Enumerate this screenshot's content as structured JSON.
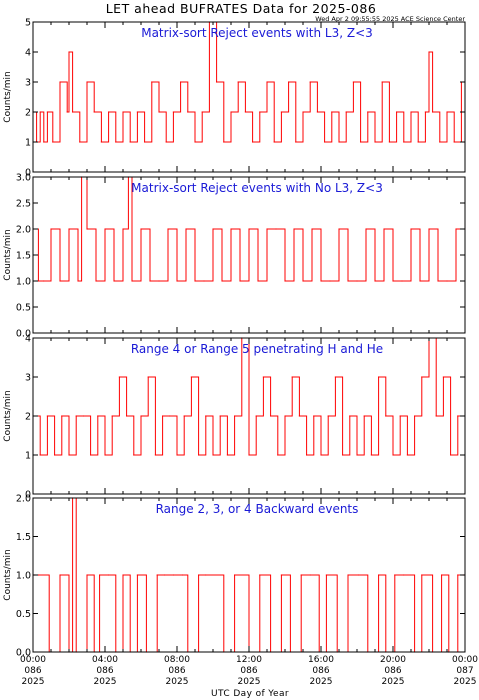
{
  "title": "LET ahead BUFRATES Data for 2025-086",
  "timestamp": "Wed Apr  2 09:55:55 2025 ACE Science Center",
  "xlabel": "UTC Day of Year",
  "x_tick_labels": [
    [
      "00:00",
      "086",
      "2025"
    ],
    [
      "04:00",
      "086",
      "2025"
    ],
    [
      "08:00",
      "086",
      "2025"
    ],
    [
      "12:00",
      "086",
      "2025"
    ],
    [
      "16:00",
      "086",
      "2025"
    ],
    [
      "20:00",
      "086",
      "2025"
    ],
    [
      "00:00",
      "087",
      "2025"
    ]
  ],
  "colors": {
    "trace": "#ff0000",
    "title": "#1a1ad6",
    "axes": "#000000"
  },
  "chart_data": [
    {
      "type": "line",
      "title": "Matrix-sort Reject events with L3, Z<3",
      "ylabel": "Counts/min",
      "ylim": [
        0,
        5
      ],
      "y_ticks": [
        "0",
        "1",
        "2",
        "3",
        "4",
        "5"
      ],
      "xlim_hours": [
        0,
        24
      ],
      "x_hours": [
        0,
        0.2,
        0.4,
        0.6,
        0.8,
        1.1,
        1.5,
        1.9,
        2.0,
        2.2,
        2.6,
        3.0,
        3.4,
        3.8,
        4.2,
        4.6,
        5.0,
        5.4,
        5.8,
        6.2,
        6.6,
        7.0,
        7.4,
        7.8,
        8.2,
        8.6,
        9.0,
        9.4,
        9.8,
        10.2,
        10.6,
        11.0,
        11.4,
        11.8,
        12.2,
        12.6,
        13.0,
        13.4,
        13.8,
        14.2,
        14.6,
        15.0,
        15.4,
        15.8,
        16.2,
        16.6,
        17.0,
        17.4,
        17.8,
        18.2,
        18.6,
        19.0,
        19.4,
        19.8,
        20.2,
        20.6,
        21.0,
        21.4,
        21.8,
        22.0,
        22.2,
        22.6,
        23.0,
        23.4,
        23.8,
        24.0
      ],
      "values": [
        2,
        1,
        2,
        1,
        2,
        1,
        3,
        2,
        4,
        2,
        1,
        3,
        2,
        1,
        2,
        1,
        2,
        1,
        2,
        1,
        3,
        2,
        1,
        2,
        3,
        2,
        1,
        2,
        5,
        3,
        1,
        2,
        3,
        2,
        1,
        2,
        3,
        1,
        2,
        3,
        1,
        2,
        3,
        2,
        1,
        2,
        1,
        2,
        3,
        1,
        2,
        1,
        3,
        1,
        2,
        1,
        2,
        1,
        2,
        4,
        2,
        1,
        2,
        1,
        3,
        3
      ]
    },
    {
      "type": "line",
      "title": "Matrix-sort Reject events with No L3, Z<3",
      "ylabel": "Counts/min",
      "ylim": [
        0,
        3
      ],
      "y_ticks": [
        "0.0",
        "0.5",
        "1.0",
        "1.5",
        "2.0",
        "2.5",
        "3.0"
      ],
      "xlim_hours": [
        0,
        24
      ],
      "x_hours": [
        0,
        0.3,
        0.6,
        1.0,
        1.5,
        2.0,
        2.5,
        2.7,
        3.0,
        3.5,
        4.0,
        4.5,
        5.0,
        5.3,
        5.5,
        6.0,
        6.5,
        7.0,
        7.5,
        8.0,
        8.5,
        9.0,
        9.5,
        10.0,
        10.5,
        11.0,
        11.5,
        12.0,
        12.5,
        13.0,
        13.5,
        14.0,
        14.5,
        15.0,
        15.5,
        16.0,
        16.5,
        17.0,
        17.5,
        18.0,
        18.5,
        19.0,
        19.5,
        20.0,
        20.5,
        21.0,
        21.5,
        22.0,
        22.5,
        23.0,
        23.5,
        24.0
      ],
      "values": [
        2,
        1,
        1,
        2,
        1,
        2,
        1,
        3,
        2,
        1,
        2,
        1,
        2,
        3,
        1,
        2,
        1,
        1,
        2,
        1,
        2,
        1,
        1,
        2,
        1,
        2,
        1,
        2,
        1,
        2,
        2,
        1,
        2,
        1,
        2,
        1,
        1,
        2,
        1,
        1,
        2,
        1,
        2,
        1,
        1,
        2,
        1,
        2,
        1,
        1,
        2,
        2
      ]
    },
    {
      "type": "line",
      "title": "Range 4 or Range 5 penetrating H and He",
      "ylabel": "Counts/min",
      "ylim": [
        0,
        4
      ],
      "y_ticks": [
        "0",
        "1",
        "2",
        "3",
        "4"
      ],
      "xlim_hours": [
        0,
        24
      ],
      "x_hours": [
        0,
        0.4,
        0.8,
        1.2,
        1.6,
        2.0,
        2.4,
        2.8,
        3.2,
        3.6,
        4.0,
        4.4,
        4.8,
        5.2,
        5.6,
        6.0,
        6.4,
        6.8,
        7.2,
        7.6,
        8.0,
        8.4,
        8.8,
        9.2,
        9.6,
        10.0,
        10.4,
        10.8,
        11.2,
        11.6,
        12.0,
        12.4,
        12.8,
        13.2,
        13.6,
        14.0,
        14.4,
        14.8,
        15.2,
        15.6,
        16.0,
        16.4,
        16.8,
        17.2,
        17.6,
        18.0,
        18.4,
        18.8,
        19.2,
        19.6,
        20.0,
        20.4,
        20.8,
        21.2,
        21.6,
        22.0,
        22.4,
        22.8,
        23.2,
        23.6,
        24.0
      ],
      "values": [
        2,
        1,
        2,
        1,
        2,
        1,
        2,
        2,
        1,
        2,
        1,
        2,
        3,
        2,
        1,
        2,
        3,
        1,
        2,
        2,
        1,
        2,
        3,
        1,
        2,
        1,
        2,
        1,
        2,
        4,
        1,
        2,
        3,
        2,
        1,
        2,
        3,
        2,
        1,
        2,
        1,
        2,
        3,
        1,
        2,
        1,
        2,
        1,
        3,
        2,
        1,
        2,
        1,
        2,
        3,
        4,
        2,
        3,
        1,
        2,
        3
      ]
    },
    {
      "type": "line",
      "title": "Range 2, 3, or 4 Backward events",
      "ylabel": "Counts/min",
      "ylim": [
        0,
        2
      ],
      "y_ticks": [
        "0.0",
        "0.5",
        "1.0",
        "1.5",
        "2.0"
      ],
      "xlim_hours": [
        0,
        24
      ],
      "x_hours": [
        0,
        0.1,
        0.3,
        0.9,
        1.5,
        2.0,
        2.2,
        2.4,
        3.0,
        3.4,
        3.7,
        4.2,
        4.6,
        5.0,
        5.4,
        5.8,
        6.3,
        6.9,
        7.3,
        7.8,
        8.3,
        8.6,
        9.2,
        9.6,
        10.6,
        11.2,
        12.0,
        12.6,
        13.2,
        13.8,
        14.3,
        14.9,
        15.4,
        15.9,
        16.3,
        16.9,
        17.5,
        18.1,
        18.6,
        19.2,
        19.6,
        20.1,
        20.6,
        21.2,
        21.6,
        22.2,
        22.7,
        23.1,
        23.6,
        23.9,
        24.0
      ],
      "values": [
        1,
        1,
        1,
        0,
        1,
        0,
        2,
        0,
        1,
        0,
        1,
        1,
        0,
        1,
        0,
        1,
        0,
        1,
        1,
        1,
        1,
        0,
        1,
        1,
        0,
        1,
        0,
        1,
        0,
        1,
        0,
        1,
        1,
        0,
        1,
        0,
        1,
        1,
        0,
        1,
        0,
        1,
        1,
        0,
        1,
        0,
        1,
        0,
        1,
        1,
        1
      ]
    }
  ]
}
